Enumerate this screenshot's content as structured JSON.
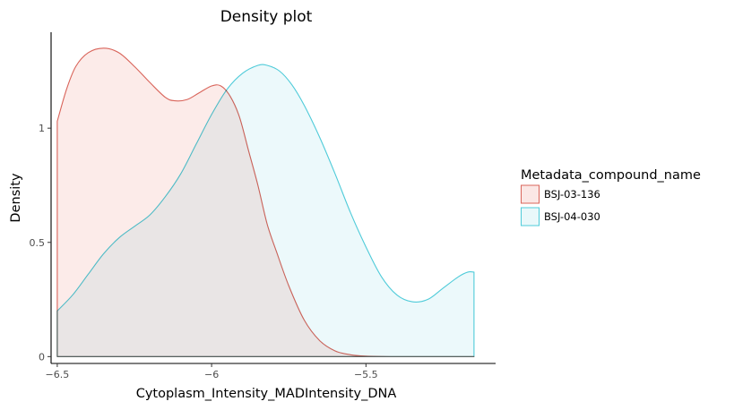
{
  "chart_data": {
    "type": "area",
    "title": "Density plot",
    "xlabel": "Cytoplasm_Intensity_MADIntensity_DNA",
    "ylabel": "Density",
    "xlim": [
      -6.52,
      -5.08
    ],
    "ylim": [
      -0.03,
      1.42
    ],
    "x_ticks": [
      {
        "value": -6.5,
        "label": "−6.5"
      },
      {
        "value": -6.0,
        "label": "−6"
      },
      {
        "value": -5.5,
        "label": "−5.5"
      }
    ],
    "y_ticks": [
      {
        "value": 0,
        "label": "0"
      },
      {
        "value": 0.5,
        "label": "0.5"
      },
      {
        "value": 1,
        "label": "1"
      }
    ],
    "grid": false,
    "legend": {
      "title": "Metadata_compound_name",
      "position": "right"
    },
    "series": [
      {
        "name": "BSJ-03-136",
        "color": "#d9645a",
        "fill": "#fbe7e5",
        "points": [
          [
            -6.5,
            1.03
          ],
          [
            -6.47,
            1.17
          ],
          [
            -6.44,
            1.27
          ],
          [
            -6.4,
            1.33
          ],
          [
            -6.35,
            1.35
          ],
          [
            -6.3,
            1.33
          ],
          [
            -6.25,
            1.27
          ],
          [
            -6.2,
            1.2
          ],
          [
            -6.15,
            1.135
          ],
          [
            -6.12,
            1.12
          ],
          [
            -6.08,
            1.125
          ],
          [
            -6.04,
            1.155
          ],
          [
            -6.0,
            1.185
          ],
          [
            -5.97,
            1.185
          ],
          [
            -5.94,
            1.14
          ],
          [
            -5.91,
            1.05
          ],
          [
            -5.88,
            0.9
          ],
          [
            -5.85,
            0.75
          ],
          [
            -5.82,
            0.58
          ],
          [
            -5.79,
            0.46
          ],
          [
            -5.75,
            0.31
          ],
          [
            -5.7,
            0.16
          ],
          [
            -5.65,
            0.07
          ],
          [
            -5.6,
            0.025
          ],
          [
            -5.55,
            0.008
          ],
          [
            -5.5,
            0.002
          ],
          [
            -5.4,
            0.0
          ],
          [
            -5.3,
            0.0
          ],
          [
            -5.15,
            0.0
          ]
        ]
      },
      {
        "name": "BSJ-04-030",
        "color": "#4fcbd9",
        "fill": "#e9f8fa",
        "points": [
          [
            -6.5,
            0.2
          ],
          [
            -6.45,
            0.27
          ],
          [
            -6.4,
            0.36
          ],
          [
            -6.35,
            0.45
          ],
          [
            -6.3,
            0.52
          ],
          [
            -6.25,
            0.57
          ],
          [
            -6.2,
            0.62
          ],
          [
            -6.15,
            0.7
          ],
          [
            -6.1,
            0.8
          ],
          [
            -6.05,
            0.93
          ],
          [
            -6.0,
            1.06
          ],
          [
            -5.95,
            1.17
          ],
          [
            -5.9,
            1.24
          ],
          [
            -5.85,
            1.275
          ],
          [
            -5.82,
            1.275
          ],
          [
            -5.78,
            1.25
          ],
          [
            -5.74,
            1.19
          ],
          [
            -5.7,
            1.1
          ],
          [
            -5.65,
            0.96
          ],
          [
            -5.6,
            0.8
          ],
          [
            -5.55,
            0.63
          ],
          [
            -5.5,
            0.48
          ],
          [
            -5.45,
            0.35
          ],
          [
            -5.4,
            0.27
          ],
          [
            -5.35,
            0.24
          ],
          [
            -5.3,
            0.25
          ],
          [
            -5.25,
            0.3
          ],
          [
            -5.2,
            0.35
          ],
          [
            -5.17,
            0.37
          ],
          [
            -5.15,
            0.37
          ]
        ]
      }
    ]
  }
}
